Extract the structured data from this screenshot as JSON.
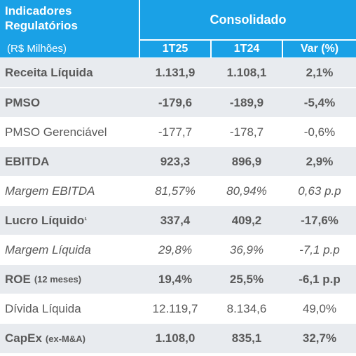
{
  "header": {
    "title_line1": "Indicadores",
    "title_line2": "Regulatórios",
    "unit": "(R$ Milhões)",
    "group": "Consolidado",
    "columns": [
      "1T25",
      "1T24",
      "Var (%)"
    ]
  },
  "rows": [
    {
      "label": "Receita Líquida",
      "sub": "",
      "values": [
        "1.131,9",
        "1.108,1",
        "2,1%"
      ]
    },
    {
      "label": "PMSO",
      "sub": "",
      "values": [
        "-179,6",
        "-189,9",
        "-5,4%"
      ]
    },
    {
      "label": "PMSO Gerenciável",
      "sub": "",
      "values": [
        "-177,7",
        "-178,7",
        "-0,6%"
      ]
    },
    {
      "label": "EBITDA",
      "sub": "",
      "values": [
        "923,3",
        "896,9",
        "2,9%"
      ]
    },
    {
      "label": "Margem EBITDA",
      "sub": "",
      "values": [
        "81,57%",
        "80,94%",
        "0,63 p.p"
      ]
    },
    {
      "label": "Lucro Líquido",
      "sup": "¹",
      "values": [
        "337,4",
        "409,2",
        "-17,6%"
      ]
    },
    {
      "label": "Margem Líquida",
      "sub": "",
      "values": [
        "29,8%",
        "36,9%",
        "-7,1 p.p"
      ]
    },
    {
      "label": "ROE",
      "sub": "(12 meses)",
      "values": [
        "19,4%",
        "25,5%",
        "-6,1 p.p"
      ]
    },
    {
      "label": "Dívida Líquida",
      "sub": "",
      "values": [
        "12.119,7",
        "8.134,6",
        "49,0%"
      ]
    },
    {
      "label": "CapEx",
      "sub": "(ex-M&A)",
      "values": [
        "1.108,0",
        "835,1",
        "32,7%"
      ]
    }
  ],
  "colors": {
    "header_bg": "#1aa1e6",
    "shaded_row_bg": "#e8ebef",
    "text": "#595959"
  }
}
